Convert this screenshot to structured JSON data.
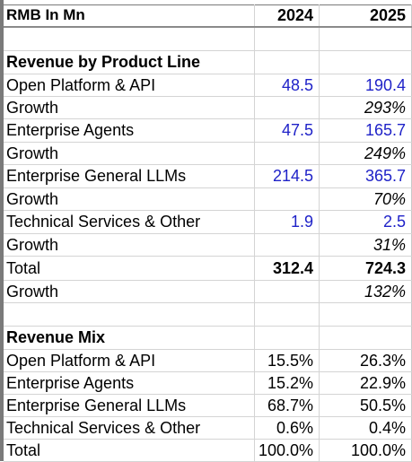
{
  "sheet": {
    "header": {
      "label": "RMB In Mn",
      "year1": "2024",
      "year2": "2025"
    },
    "section_revenue": "Revenue by Product Line",
    "revenue_rows": [
      {
        "label": "Open Platform & API",
        "v2024": "48.5",
        "v2025": "190.4"
      },
      {
        "label": "Growth",
        "v2024": "",
        "v2025": "293%"
      },
      {
        "label": "Enterprise Agents",
        "v2024": "47.5",
        "v2025": "165.7"
      },
      {
        "label": "Growth",
        "v2024": "",
        "v2025": "249%"
      },
      {
        "label": "Enterprise General LLMs",
        "v2024": "214.5",
        "v2025": "365.7"
      },
      {
        "label": "Growth",
        "v2024": "",
        "v2025": "70%"
      },
      {
        "label": "Technical Services & Other",
        "v2024": "1.9",
        "v2025": "2.5"
      },
      {
        "label": "Growth",
        "v2024": "",
        "v2025": "31%"
      }
    ],
    "total": {
      "label": "Total",
      "v2024": "312.4",
      "v2025": "724.3"
    },
    "total_growth": {
      "label": "Growth",
      "v2024": "",
      "v2025": "132%"
    },
    "section_mix": "Revenue Mix",
    "mix_rows": [
      {
        "label": "Open Platform & API",
        "v2024": "15.5%",
        "v2025": "26.3%"
      },
      {
        "label": "Enterprise Agents",
        "v2024": "15.2%",
        "v2025": "22.9%"
      },
      {
        "label": "Enterprise General LLMs",
        "v2024": "68.7%",
        "v2025": "50.5%"
      },
      {
        "label": "Technical Services & Other",
        "v2024": "0.6%",
        "v2025": "0.4%"
      },
      {
        "label": "Total",
        "v2024": "100.0%",
        "v2025": "100.0%"
      }
    ]
  },
  "colors": {
    "input_blue": "#1f22c8",
    "gridline": "#d4d4d4"
  }
}
